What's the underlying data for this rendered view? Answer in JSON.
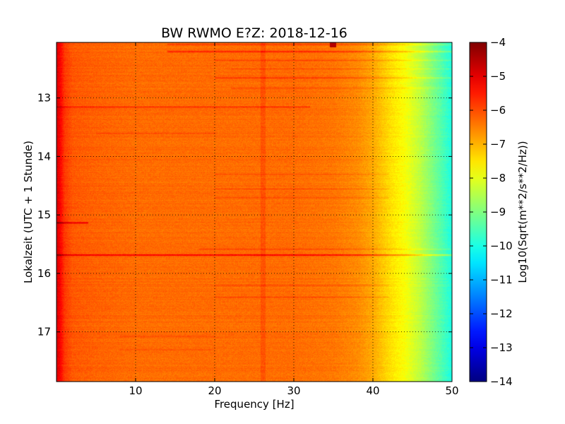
{
  "chart_data": {
    "type": "heatmap",
    "title": "BW RWMO E?Z: 2018-12-16",
    "xlabel": "Frequency [Hz]",
    "ylabel": "Lokalzeit (UTC + 1 Stunde)",
    "xlim": [
      0,
      50
    ],
    "ylim": [
      17.85,
      12.05
    ],
    "x_ticks": [
      10,
      20,
      30,
      40,
      50
    ],
    "y_ticks": [
      13,
      14,
      15,
      16,
      17
    ],
    "grid": true,
    "colormap": "jet",
    "colorbar": {
      "label": "Log10(Sqrt(m**2/s**2/Hz))",
      "range": [
        -14,
        -4
      ],
      "ticks": [
        -4,
        -5,
        -6,
        -7,
        -8,
        -9,
        -10,
        -11,
        -12,
        -13,
        -14
      ]
    },
    "frequency_profile": [
      {
        "hz": 0,
        "value": -4.9
      },
      {
        "hz": 0.4,
        "value": -5.2
      },
      {
        "hz": 1,
        "value": -5.8
      },
      {
        "hz": 2,
        "value": -6.1
      },
      {
        "hz": 5,
        "value": -6.2
      },
      {
        "hz": 10,
        "value": -6.3
      },
      {
        "hz": 20,
        "value": -6.3
      },
      {
        "hz": 30,
        "value": -6.3
      },
      {
        "hz": 35,
        "value": -6.4
      },
      {
        "hz": 38,
        "value": -6.6
      },
      {
        "hz": 40,
        "value": -6.9
      },
      {
        "hz": 42,
        "value": -7.4
      },
      {
        "hz": 44,
        "value": -7.8
      },
      {
        "hz": 46,
        "value": -8.4
      },
      {
        "hz": 48,
        "value": -9.2
      },
      {
        "hz": 50,
        "value": -10.0
      }
    ],
    "bands": [
      {
        "time": 12.08,
        "fmin": 14,
        "fmax": 50,
        "delta": 0.5
      },
      {
        "time": 12.2,
        "fmin": 14,
        "fmax": 50,
        "delta": 0.9
      },
      {
        "time": 12.35,
        "fmin": 20,
        "fmax": 50,
        "delta": 0.4
      },
      {
        "time": 12.5,
        "fmin": 22,
        "fmax": 50,
        "delta": 0.3
      },
      {
        "time": 12.65,
        "fmin": 20,
        "fmax": 50,
        "delta": 0.6
      },
      {
        "time": 12.83,
        "fmin": 22,
        "fmax": 50,
        "delta": 0.4
      },
      {
        "time": 13.15,
        "fmin": 0,
        "fmax": 32,
        "delta": 0.6
      },
      {
        "time": 13.6,
        "fmin": 5,
        "fmax": 20,
        "delta": 0.3
      },
      {
        "time": 14.3,
        "fmin": 20,
        "fmax": 42,
        "delta": 0.3
      },
      {
        "time": 14.55,
        "fmin": 20,
        "fmax": 42,
        "delta": 0.3
      },
      {
        "time": 14.7,
        "fmin": 20,
        "fmax": 42,
        "delta": 0.3
      },
      {
        "time": 15.13,
        "fmin": 0,
        "fmax": 4,
        "delta": 1.2
      },
      {
        "time": 15.58,
        "fmin": 18,
        "fmax": 50,
        "delta": 0.4
      },
      {
        "time": 15.68,
        "fmin": 0,
        "fmax": 50,
        "delta": 1.3
      },
      {
        "time": 16.2,
        "fmin": 20,
        "fmax": 42,
        "delta": 0.3
      },
      {
        "time": 16.4,
        "fmin": 20,
        "fmax": 42,
        "delta": 0.3
      },
      {
        "time": 17.07,
        "fmin": 8,
        "fmax": 20,
        "delta": 0.3
      },
      {
        "time": 17.3,
        "fmin": 8,
        "fmax": 20,
        "delta": 0.3
      }
    ],
    "spots": [
      {
        "time": 12.08,
        "hz": 34.9,
        "value": -4.5
      }
    ]
  }
}
